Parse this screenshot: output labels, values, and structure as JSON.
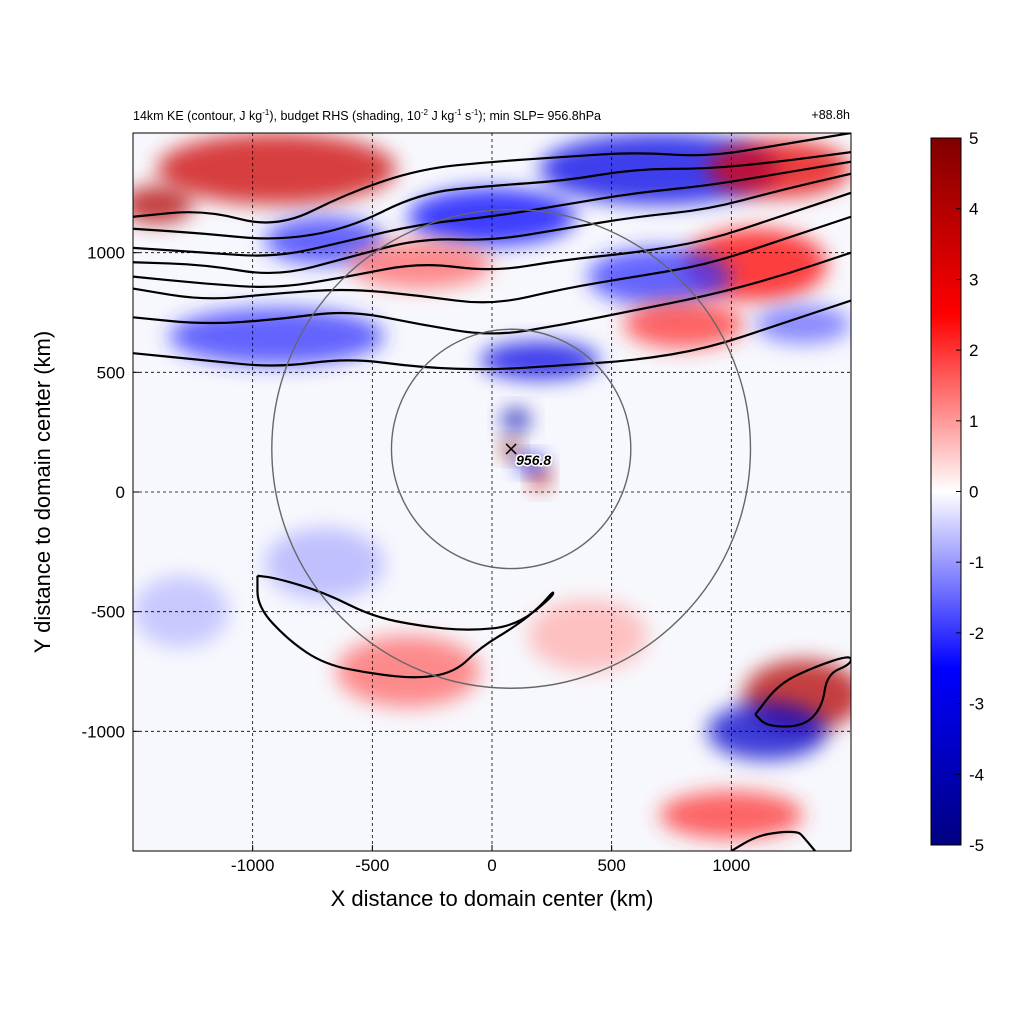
{
  "title": {
    "left_parts": [
      "14km KE (contour, J kg",
      "-1",
      "), budget RHS (shading, 10",
      "-2",
      " J kg",
      "-1",
      " s",
      "-1",
      "); min SLP= 956.8hPa"
    ],
    "right": "+88.8h"
  },
  "chart_data": {
    "type": "heatmap",
    "xlabel": "X distance to domain center (km)",
    "ylabel": "Y distance to domain center (km)",
    "xlim": [
      -1500,
      1500
    ],
    "ylim": [
      -1500,
      1500
    ],
    "xticks": [
      -1000,
      -500,
      0,
      500,
      1000
    ],
    "yticks": [
      -1000,
      -500,
      0,
      500,
      1000
    ],
    "grid": true,
    "colorbar": {
      "range": [
        -5,
        5
      ],
      "ticks": [
        5,
        4,
        3,
        2,
        1,
        0,
        -1,
        -2,
        -3,
        -4,
        -5
      ],
      "colormap": [
        "#000080",
        "#0000ff",
        "#ffffff",
        "#ff0000",
        "#800000"
      ]
    },
    "center_marker": {
      "x": 80,
      "y": 180,
      "label": "956.8"
    },
    "range_circles": [
      {
        "cx": 80,
        "cy": 180,
        "r_km": 500
      },
      {
        "cx": 80,
        "cy": 180,
        "r_km": 1000
      }
    ],
    "shading_regions": [
      {
        "x": -900,
        "y": 1350,
        "rx": 500,
        "ry": 150,
        "value": 3.5
      },
      {
        "x": -1400,
        "y": 1200,
        "rx": 150,
        "ry": 80,
        "value": 4
      },
      {
        "x": 700,
        "y": 1350,
        "rx": 500,
        "ry": 150,
        "value": -3
      },
      {
        "x": 1200,
        "y": 1350,
        "rx": 300,
        "ry": 120,
        "value": 3
      },
      {
        "x": 0,
        "y": 1150,
        "rx": 350,
        "ry": 120,
        "value": -2.5
      },
      {
        "x": -700,
        "y": 1050,
        "rx": 250,
        "ry": 100,
        "value": -2
      },
      {
        "x": 1100,
        "y": 950,
        "rx": 300,
        "ry": 150,
        "value": 2.5
      },
      {
        "x": 700,
        "y": 900,
        "rx": 300,
        "ry": 120,
        "value": -2
      },
      {
        "x": -300,
        "y": 950,
        "rx": 300,
        "ry": 100,
        "value": 1.5
      },
      {
        "x": -900,
        "y": 650,
        "rx": 450,
        "ry": 120,
        "value": -2
      },
      {
        "x": 200,
        "y": 550,
        "rx": 250,
        "ry": 80,
        "value": -3
      },
      {
        "x": 800,
        "y": 700,
        "rx": 250,
        "ry": 100,
        "value": 2
      },
      {
        "x": 1300,
        "y": 700,
        "rx": 200,
        "ry": 80,
        "value": -1.5
      },
      {
        "x": 100,
        "y": 300,
        "rx": 60,
        "ry": 50,
        "value": -4
      },
      {
        "x": 80,
        "y": 180,
        "rx": 40,
        "ry": 40,
        "value": 5
      },
      {
        "x": 200,
        "y": 60,
        "rx": 40,
        "ry": 50,
        "value": 4
      },
      {
        "x": 160,
        "y": 120,
        "rx": 60,
        "ry": 40,
        "value": -3
      },
      {
        "x": -350,
        "y": -750,
        "rx": 300,
        "ry": 150,
        "value": 1.5
      },
      {
        "x": 1300,
        "y": -850,
        "rx": 250,
        "ry": 150,
        "value": 4
      },
      {
        "x": 1150,
        "y": -1000,
        "rx": 250,
        "ry": 120,
        "value": -3.5
      },
      {
        "x": 1000,
        "y": -1350,
        "rx": 300,
        "ry": 100,
        "value": 2
      },
      {
        "x": -700,
        "y": -300,
        "rx": 250,
        "ry": 150,
        "value": -0.8
      },
      {
        "x": -1300,
        "y": -500,
        "rx": 200,
        "ry": 150,
        "value": -0.7
      },
      {
        "x": 400,
        "y": -600,
        "rx": 250,
        "ry": 150,
        "value": 0.8
      }
    ],
    "ke_contours": [
      [
        [
          -1500,
          1150
        ],
        [
          -1200,
          1180
        ],
        [
          -900,
          1100
        ],
        [
          -600,
          1250
        ],
        [
          -300,
          1350
        ],
        [
          0,
          1380
        ],
        [
          300,
          1400
        ],
        [
          600,
          1420
        ],
        [
          900,
          1400
        ],
        [
          1200,
          1450
        ],
        [
          1500,
          1500
        ]
      ],
      [
        [
          -1500,
          1100
        ],
        [
          -1200,
          1080
        ],
        [
          -900,
          1050
        ],
        [
          -600,
          1100
        ],
        [
          -300,
          1250
        ],
        [
          0,
          1280
        ],
        [
          300,
          1300
        ],
        [
          600,
          1350
        ],
        [
          900,
          1350
        ],
        [
          1200,
          1380
        ],
        [
          1500,
          1420
        ]
      ],
      [
        [
          -1500,
          1020
        ],
        [
          -1200,
          1000
        ],
        [
          -900,
          980
        ],
        [
          -600,
          1050
        ],
        [
          -300,
          1120
        ],
        [
          0,
          1150
        ],
        [
          300,
          1200
        ],
        [
          600,
          1250
        ],
        [
          900,
          1280
        ],
        [
          1200,
          1330
        ],
        [
          1500,
          1380
        ]
      ],
      [
        [
          -1500,
          960
        ],
        [
          -1200,
          950
        ],
        [
          -900,
          900
        ],
        [
          -600,
          980
        ],
        [
          -300,
          1060
        ],
        [
          0,
          1050
        ],
        [
          300,
          1100
        ],
        [
          600,
          1150
        ],
        [
          900,
          1180
        ],
        [
          1200,
          1260
        ],
        [
          1500,
          1330
        ]
      ],
      [
        [
          -1500,
          900
        ],
        [
          -1200,
          870
        ],
        [
          -900,
          850
        ],
        [
          -600,
          900
        ],
        [
          -300,
          960
        ],
        [
          0,
          920
        ],
        [
          300,
          970
        ],
        [
          600,
          1000
        ],
        [
          900,
          1050
        ],
        [
          1200,
          1150
        ],
        [
          1500,
          1250
        ]
      ],
      [
        [
          -1500,
          850
        ],
        [
          -1200,
          800
        ],
        [
          -900,
          830
        ],
        [
          -600,
          850
        ],
        [
          -300,
          820
        ],
        [
          0,
          780
        ],
        [
          300,
          850
        ],
        [
          600,
          900
        ],
        [
          900,
          950
        ],
        [
          1200,
          1050
        ],
        [
          1500,
          1150
        ]
      ],
      [
        [
          -1500,
          730
        ],
        [
          -1200,
          700
        ],
        [
          -900,
          720
        ],
        [
          -600,
          760
        ],
        [
          -300,
          700
        ],
        [
          0,
          650
        ],
        [
          300,
          700
        ],
        [
          600,
          760
        ],
        [
          900,
          820
        ],
        [
          1200,
          900
        ],
        [
          1500,
          1000
        ]
      ],
      [
        [
          -1500,
          580
        ],
        [
          -1200,
          550
        ],
        [
          -900,
          520
        ],
        [
          -600,
          560
        ],
        [
          -300,
          520
        ],
        [
          0,
          510
        ],
        [
          300,
          530
        ],
        [
          600,
          550
        ],
        [
          900,
          600
        ],
        [
          1200,
          700
        ],
        [
          1500,
          800
        ]
      ]
    ],
    "ke_closed_contours": [
      [
        [
          -980,
          -350
        ],
        [
          -900,
          -360
        ],
        [
          -700,
          -420
        ],
        [
          -500,
          -520
        ],
        [
          -300,
          -560
        ],
        [
          -100,
          -580
        ],
        [
          100,
          -560
        ],
        [
          250,
          -440
        ],
        [
          260,
          -410
        ],
        [
          200,
          -480
        ],
        [
          100,
          -560
        ],
        [
          -50,
          -650
        ],
        [
          -150,
          -750
        ],
        [
          -300,
          -780
        ],
        [
          -500,
          -760
        ],
        [
          -700,
          -720
        ],
        [
          -850,
          -620
        ],
        [
          -980,
          -480
        ],
        [
          -980,
          -350
        ]
      ],
      [
        [
          1100,
          -930
        ],
        [
          1200,
          -800
        ],
        [
          1350,
          -730
        ],
        [
          1500,
          -680
        ],
        [
          1500,
          -720
        ],
        [
          1400,
          -760
        ],
        [
          1380,
          -900
        ],
        [
          1300,
          -980
        ],
        [
          1150,
          -980
        ],
        [
          1100,
          -930
        ]
      ],
      [
        [
          1000,
          -1500
        ],
        [
          1100,
          -1440
        ],
        [
          1200,
          -1420
        ],
        [
          1280,
          -1420
        ],
        [
          1300,
          -1440
        ],
        [
          1350,
          -1500
        ]
      ]
    ]
  }
}
